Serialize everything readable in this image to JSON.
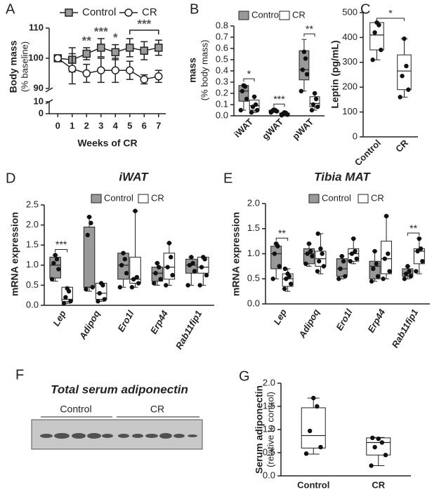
{
  "chart_data": [
    {
      "type": "line",
      "panel": "A",
      "ylabel": "Body mass",
      "ylabel_sub": "(% baseline)",
      "xlabel": "Weeks of CR",
      "x": [
        0,
        1,
        2,
        3,
        4,
        5,
        6,
        7
      ],
      "xlim": [
        -0.6,
        7.5
      ],
      "xticks": [
        0,
        1,
        2,
        3,
        4,
        5,
        6,
        7
      ],
      "ylim": [
        90,
        110
      ],
      "yticks": [
        90,
        100,
        110
      ],
      "ylim_lower": [
        0,
        10
      ],
      "yticks_lower": [
        0,
        10
      ],
      "series": [
        {
          "name": "Control",
          "color": "#999999",
          "marker": "square",
          "values": [
            100,
            99.5,
            101.5,
            103.5,
            102,
            103.5,
            102.5,
            103.5
          ],
          "errors": [
            0,
            4,
            2,
            3,
            2.5,
            3,
            3,
            2.5
          ]
        },
        {
          "name": "CR",
          "color": "#ffffff",
          "marker": "circle",
          "values": [
            100,
            96.5,
            95,
            96,
            96,
            96,
            93,
            94
          ],
          "errors": [
            0,
            5,
            3,
            4,
            4,
            3,
            1.5,
            2
          ]
        }
      ],
      "annotations": [
        {
          "label": "**",
          "x": 2
        },
        {
          "label": "***",
          "x": 3
        },
        {
          "label": "*",
          "x": 4
        },
        {
          "label": "***",
          "x": [
            5,
            7
          ]
        }
      ]
    },
    {
      "type": "grouped_box",
      "panel": "B",
      "ylabel": "mass",
      "ylabel_sub": "(% body mass)",
      "categories": [
        "iWAT",
        "gWAT",
        "pWAT"
      ],
      "ylim": [
        0,
        0.8
      ],
      "yticks": [
        {
          "value": 0,
          "label": "0.0"
        },
        0.1,
        0.2,
        0.3,
        0.4,
        0.5,
        0.6,
        0.7,
        0.8
      ],
      "series": [
        {
          "name": "Control",
          "color": "#999999",
          "boxes": [
            {
              "min": 0.05,
              "q1": 0.13,
              "median": 0.22,
              "q3": 0.27,
              "max": 0.28,
              "points": [
                0.05,
                0.15,
                0.22,
                0.26,
                0.27
              ]
            },
            {
              "min": 0.03,
              "q1": 0.035,
              "median": 0.045,
              "q3": 0.05,
              "max": 0.055,
              "points": [
                0.03,
                0.04,
                0.045,
                0.05,
                0.055
              ]
            },
            {
              "min": 0.22,
              "q1": 0.32,
              "median": 0.41,
              "q3": 0.58,
              "max": 0.68,
              "points": [
                0.22,
                0.37,
                0.41,
                0.51,
                0.57
              ]
            }
          ]
        },
        {
          "name": "CR",
          "color": "#ffffff",
          "boxes": [
            {
              "min": 0.03,
              "q1": 0.05,
              "median": 0.09,
              "q3": 0.14,
              "max": 0.17,
              "points": [
                0.03,
                0.05,
                0.08,
                0.1,
                0.17
              ]
            },
            {
              "min": 0.005,
              "q1": 0.01,
              "median": 0.02,
              "q3": 0.025,
              "max": 0.03,
              "points": [
                0.005,
                0.01,
                0.02,
                0.025,
                0.03
              ]
            },
            {
              "min": 0.05,
              "q1": 0.08,
              "median": 0.11,
              "q3": 0.17,
              "max": 0.2,
              "points": [
                0.05,
                0.08,
                0.1,
                0.15,
                0.2
              ]
            }
          ]
        }
      ],
      "annotations": [
        {
          "label": "*",
          "category": 0
        },
        {
          "label": "***",
          "category": 1
        },
        {
          "label": "**",
          "category": 2
        }
      ]
    },
    {
      "type": "box",
      "panel": "C",
      "ylabel": "Leptin (pg/mL)",
      "categories": [
        "Control",
        "CR"
      ],
      "color": "#ffffff",
      "ylim": [
        0,
        500
      ],
      "yticks": [
        0,
        100,
        200,
        300,
        400,
        500
      ],
      "boxes": [
        {
          "min": 310,
          "q1": 350,
          "median": 410,
          "q3": 460,
          "max": 460,
          "points": [
            310,
            350,
            420,
            450,
            460
          ]
        },
        {
          "min": 160,
          "q1": 190,
          "median": 265,
          "q3": 330,
          "max": 395,
          "points": [
            160,
            190,
            245,
            285,
            395
          ]
        }
      ],
      "annotations": [
        {
          "label": "*",
          "between": [
            0,
            1
          ]
        }
      ]
    },
    {
      "type": "grouped_box",
      "panel": "D",
      "title": "iWAT",
      "ylabel": "mRNA expression",
      "categories": [
        "Lep",
        "Adipoq",
        "Ero1l",
        "Erp44",
        "Rab11fip1"
      ],
      "ylim": [
        0,
        2.5
      ],
      "yticks": [
        {
          "value": 0,
          "label": "0.0"
        },
        0.5,
        {
          "value": 1,
          "label": "1.0"
        },
        1.5,
        {
          "value": 2,
          "label": "2.0"
        },
        2.5
      ],
      "series": [
        {
          "name": "Control",
          "color": "#999999",
          "boxes": [
            {
              "min": 0.6,
              "q1": 0.68,
              "median": 1.0,
              "q3": 1.2,
              "max": 1.25,
              "points": [
                0.65,
                0.9,
                1.05,
                1.15,
                1.25
              ]
            },
            {
              "min": 0.35,
              "q1": 0.45,
              "median": 0.45,
              "q3": 1.95,
              "max": 2.2,
              "points": [
                0.4,
                0.45,
                1.75,
                2.05,
                2.2
              ]
            },
            {
              "min": 0.45,
              "q1": 0.65,
              "median": 1.0,
              "q3": 1.3,
              "max": 1.3,
              "points": [
                0.45,
                0.8,
                1.0,
                1.15,
                1.3
              ]
            },
            {
              "min": 0.5,
              "q1": 0.6,
              "median": 0.8,
              "q3": 0.95,
              "max": 1.05,
              "points": [
                0.55,
                0.65,
                0.8,
                0.95,
                1.05
              ]
            },
            {
              "min": 0.5,
              "q1": 0.8,
              "median": 1.0,
              "q3": 1.15,
              "max": 1.2,
              "points": [
                0.5,
                0.85,
                1.0,
                1.05,
                1.2
              ]
            }
          ]
        },
        {
          "name": "CR",
          "color": "#ffffff",
          "boxes": [
            {
              "min": 0.05,
              "q1": 0.1,
              "median": 0.15,
              "q3": 0.45,
              "max": 0.45,
              "points": [
                0.05,
                0.1,
                0.2,
                0.35,
                0.42
              ]
            },
            {
              "min": 0.1,
              "q1": 0.15,
              "median": 0.3,
              "q3": 0.55,
              "max": 0.55,
              "points": [
                0.1,
                0.15,
                0.3,
                0.5,
                0.55
              ]
            },
            {
              "min": 0.45,
              "q1": 0.55,
              "median": 0.65,
              "q3": 1.2,
              "max": 2.35,
              "points": [
                0.45,
                0.55,
                0.65,
                0.7,
                2.35
              ]
            },
            {
              "min": 0.5,
              "q1": 0.65,
              "median": 0.95,
              "q3": 1.3,
              "max": 1.55,
              "points": [
                0.5,
                0.75,
                0.95,
                1.2,
                1.55
              ]
            },
            {
              "min": 0.5,
              "q1": 0.8,
              "median": 0.95,
              "q3": 1.2,
              "max": 1.2,
              "points": [
                0.5,
                0.75,
                0.95,
                1.15,
                1.2
              ]
            }
          ]
        }
      ],
      "annotations": [
        {
          "label": "***",
          "category": 0
        }
      ]
    },
    {
      "type": "grouped_box",
      "panel": "E",
      "title": "Tibia MAT",
      "ylabel": "mRNA expression",
      "categories": [
        "Lep",
        "Adipoq",
        "Ero1l",
        "Erp44",
        "Rab11fip1"
      ],
      "ylim": [
        0,
        2
      ],
      "yticks": [
        {
          "value": 0,
          "label": "0.0"
        },
        0.5,
        {
          "value": 1,
          "label": "1.0"
        },
        1.5,
        {
          "value": 2,
          "label": "2.0"
        }
      ],
      "series": [
        {
          "name": "Control",
          "color": "#999999",
          "boxes": [
            {
              "min": 0.5,
              "q1": 0.7,
              "median": 1.0,
              "q3": 1.15,
              "max": 1.2,
              "points": [
                0.5,
                0.75,
                1.0,
                1.15,
                1.2
              ]
            },
            {
              "min": 0.75,
              "q1": 0.8,
              "median": 1.0,
              "q3": 1.1,
              "max": 1.2,
              "points": [
                0.8,
                0.95,
                1.0,
                1.05,
                1.2
              ]
            },
            {
              "min": 0.5,
              "q1": 0.55,
              "median": 0.7,
              "q3": 0.9,
              "max": 0.95,
              "points": [
                0.5,
                0.55,
                0.7,
                0.85,
                0.95
              ]
            },
            {
              "min": 0.45,
              "q1": 0.5,
              "median": 0.75,
              "q3": 0.85,
              "max": 1.05,
              "points": [
                0.45,
                0.55,
                0.7,
                0.8,
                1.05
              ]
            },
            {
              "min": 0.5,
              "q1": 0.55,
              "median": 0.6,
              "q3": 0.7,
              "max": 0.75,
              "points": [
                0.5,
                0.55,
                0.6,
                0.65,
                0.75
              ]
            }
          ]
        },
        {
          "name": "CR",
          "color": "#ffffff",
          "boxes": [
            {
              "min": 0.25,
              "q1": 0.35,
              "median": 0.5,
              "q3": 0.6,
              "max": 0.7,
              "points": [
                0.3,
                0.4,
                0.5,
                0.55,
                0.6,
                0.7
              ]
            },
            {
              "min": 0.6,
              "q1": 0.75,
              "median": 0.9,
              "q3": 1.05,
              "max": 1.4,
              "points": [
                0.65,
                0.75,
                0.85,
                1.0,
                1.1,
                1.4
              ]
            },
            {
              "min": 0.8,
              "q1": 0.85,
              "median": 1.0,
              "q3": 1.1,
              "max": 1.3,
              "points": [
                0.85,
                0.9,
                1.0,
                1.05,
                1.3
              ]
            },
            {
              "min": 0.5,
              "q1": 0.6,
              "median": 0.9,
              "q3": 1.25,
              "max": 1.75,
              "points": [
                0.5,
                0.65,
                0.9,
                1.0,
                1.75
              ]
            },
            {
              "min": 0.6,
              "q1": 0.8,
              "median": 1.05,
              "q3": 1.1,
              "max": 1.3,
              "points": [
                0.65,
                0.85,
                1.05,
                1.1,
                1.3
              ]
            }
          ]
        }
      ],
      "annotations": [
        {
          "label": "**",
          "category": 0
        },
        {
          "label": "**",
          "category": 4
        }
      ]
    },
    {
      "type": "box",
      "panel": "G",
      "ylabel": "Serum adiponectin",
      "ylabel_sub": "(relative to control)",
      "categories": [
        "Control",
        "CR"
      ],
      "color": "#ffffff",
      "ylim": [
        0,
        2
      ],
      "yticks": [
        {
          "value": 0,
          "label": "0.0"
        },
        0.5,
        {
          "value": 1,
          "label": "1.0"
        },
        1.5,
        {
          "value": 2,
          "label": "2.0"
        }
      ],
      "boxes": [
        {
          "min": 0.47,
          "q1": 0.6,
          "median": 0.87,
          "q3": 1.47,
          "max": 1.68,
          "points": [
            0.48,
            0.62,
            0.97,
            1.5,
            1.68
          ]
        },
        {
          "min": 0.22,
          "q1": 0.45,
          "median": 0.72,
          "q3": 0.82,
          "max": 0.83,
          "points": [
            0.22,
            0.45,
            0.62,
            0.72,
            0.8,
            0.82
          ]
        }
      ],
      "annotations": []
    }
  ],
  "blot": {
    "panel": "F",
    "title": "Total serum adiponectin",
    "groups": [
      "Control",
      "CR"
    ]
  }
}
